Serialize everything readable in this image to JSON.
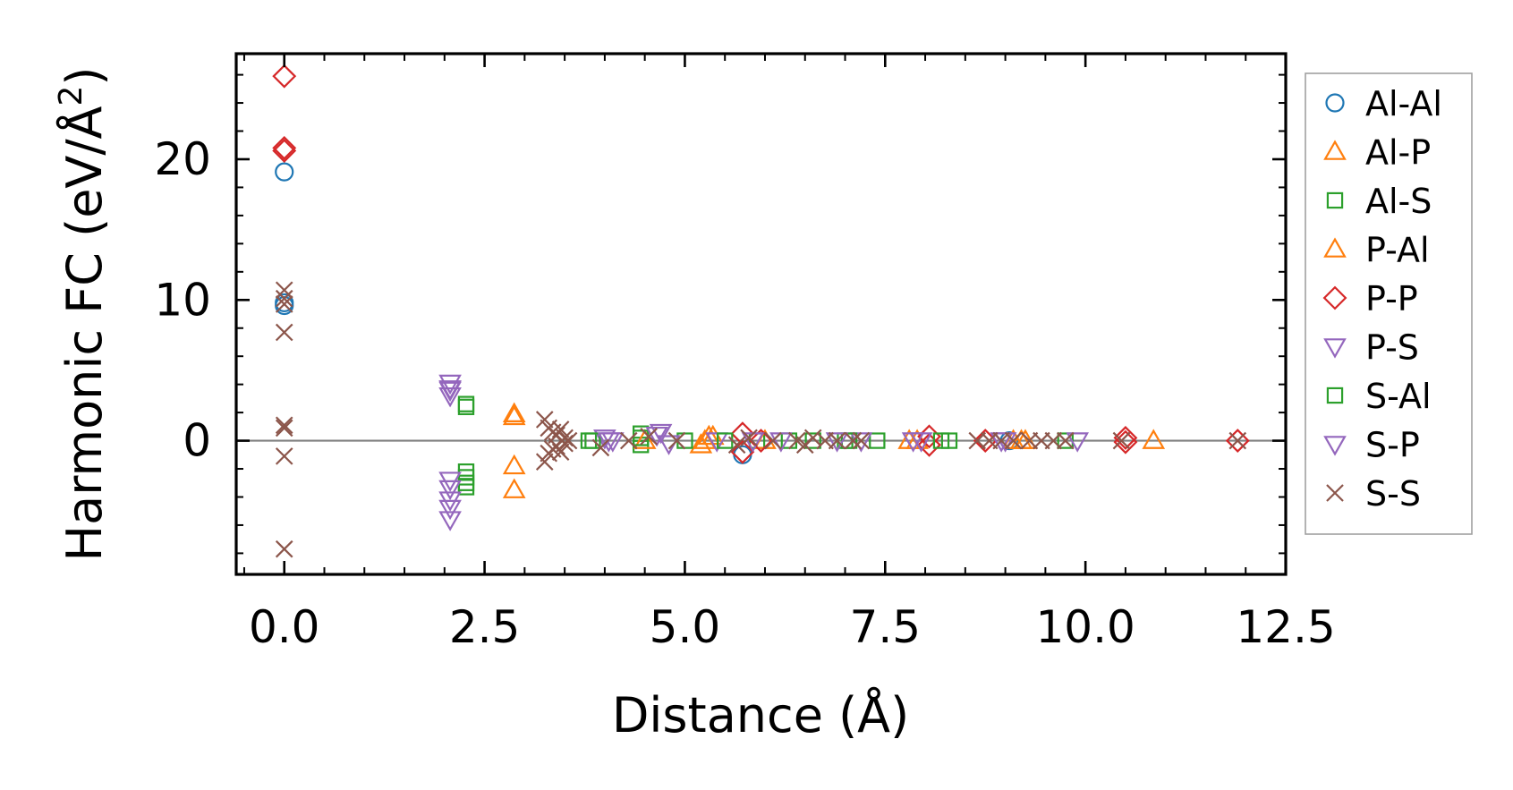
{
  "chart_data": {
    "type": "scatter",
    "title": "",
    "xlabel": "Distance (Å)",
    "ylabel_main": "Harmonic FC (eV/Å",
    "ylabel_sup": "2",
    "ylabel_close": ")",
    "xlim": [
      -0.6,
      12.5
    ],
    "ylim": [
      -9.5,
      27.5
    ],
    "xticks": [
      0.0,
      2.5,
      5.0,
      7.5,
      10.0,
      12.5
    ],
    "xtick_labels": [
      "0.0",
      "2.5",
      "5.0",
      "7.5",
      "10.0",
      "12.5"
    ],
    "yticks": [
      0,
      10,
      20
    ],
    "ytick_labels": [
      "0",
      "10",
      "20"
    ],
    "zero_line": true,
    "legend_position": "right",
    "colors": {
      "blue": "#1f77b4",
      "orange": "#ff7f0e",
      "green": "#2ca02c",
      "red": "#d62728",
      "purple": "#9467bd",
      "brown": "#8c564b",
      "zero_line": "#808080"
    },
    "series": [
      {
        "name": "Al-Al",
        "marker": "circle",
        "color": "#1f77b4",
        "x": [
          0,
          0,
          0,
          5.72,
          9.05
        ],
        "y": [
          19.1,
          9.8,
          9.6,
          -1.0,
          0
        ]
      },
      {
        "name": "Al-P",
        "marker": "triangle-up",
        "color": "#ff7f0e",
        "x": [
          2.87,
          2.87,
          2.87,
          5.2,
          5.25,
          5.3,
          7.9,
          9.1,
          9.2,
          10.85
        ],
        "y": [
          1.9,
          -1.8,
          -3.5,
          -0.3,
          0,
          0.3,
          0,
          0,
          0,
          0
        ]
      },
      {
        "name": "Al-S",
        "marker": "square",
        "color": "#2ca02c",
        "x": [
          2.27,
          2.27,
          2.27,
          2.27,
          2.27,
          3.8,
          4.45,
          4.45,
          5.0,
          5.9,
          6.3,
          7.0,
          7.4,
          8.3,
          9.75
        ],
        "y": [
          2.6,
          -2.2,
          -2.6,
          -3.0,
          -3.3,
          0,
          0.5,
          -0.3,
          0,
          0,
          0,
          0,
          0,
          0,
          0
        ]
      },
      {
        "name": "P-Al",
        "marker": "triangle-up",
        "color": "#ff7f0e",
        "x": [
          2.87,
          4.5,
          5.35,
          6.0,
          7.8,
          9.25
        ],
        "y": [
          1.7,
          0,
          0.3,
          0,
          0,
          0
        ]
      },
      {
        "name": "P-P",
        "marker": "diamond",
        "color": "#d62728",
        "x": [
          0,
          0,
          0,
          5.72,
          5.72,
          5.95,
          8.05,
          8.05,
          8.75,
          10.5,
          10.5,
          11.9
        ],
        "y": [
          25.9,
          20.8,
          20.6,
          0.5,
          -0.8,
          0,
          0.3,
          -0.3,
          0,
          0.2,
          -0.1,
          0
        ]
      },
      {
        "name": "P-S",
        "marker": "triangle-down",
        "color": "#9467bd",
        "x": [
          2.07,
          2.07,
          2.07,
          2.07,
          2.07,
          2.07,
          2.07,
          4.0,
          4.1,
          4.7,
          4.8,
          5.4,
          6.2,
          7.2,
          7.85,
          8.95,
          9.9
        ],
        "y": [
          4.1,
          3.6,
          3.2,
          -2.8,
          -3.4,
          -4.8,
          -5.6,
          0.2,
          0,
          0.6,
          -0.2,
          0,
          0,
          0,
          0,
          0,
          0
        ]
      },
      {
        "name": "S-Al",
        "marker": "square",
        "color": "#2ca02c",
        "x": [
          2.27,
          3.85,
          4.45,
          5.5,
          6.6,
          7.05,
          8.2
        ],
        "y": [
          2.4,
          0,
          0.2,
          0,
          0,
          0,
          0
        ]
      },
      {
        "name": "S-P",
        "marker": "triangle-down",
        "color": "#9467bd",
        "x": [
          2.07,
          2.07,
          4.05,
          4.65,
          5.85,
          6.9,
          7.95,
          9.0
        ],
        "y": [
          3.7,
          -4.2,
          0,
          0.4,
          0,
          0,
          0,
          0
        ]
      },
      {
        "name": "S-S",
        "marker": "x",
        "color": "#8c564b",
        "x": [
          0,
          0,
          0,
          0,
          0,
          0,
          0,
          0,
          3.25,
          3.25,
          3.3,
          3.3,
          3.35,
          3.35,
          3.4,
          3.4,
          3.45,
          3.45,
          3.5,
          3.5,
          3.55,
          3.95,
          4.3,
          4.55,
          4.9,
          5.65,
          5.8,
          6.1,
          6.4,
          6.5,
          6.6,
          6.75,
          6.9,
          7.1,
          7.2,
          8.65,
          8.8,
          8.95,
          9.1,
          9.3,
          9.45,
          9.6,
          9.75,
          10.45,
          11.9
        ],
        "y": [
          10.7,
          10.1,
          9.7,
          7.7,
          1.1,
          0.9,
          -1.1,
          -7.7,
          1.5,
          -1.5,
          0.9,
          -0.9,
          0.6,
          -0.6,
          0.4,
          -0.4,
          0.8,
          -0.8,
          0.2,
          -0.2,
          0,
          -0.5,
          0,
          0.3,
          0,
          -0.3,
          0.2,
          0,
          0,
          -0.3,
          0.2,
          0,
          0,
          0,
          0,
          0,
          0,
          0,
          0,
          0,
          0,
          0,
          0,
          0,
          0
        ]
      }
    ]
  }
}
